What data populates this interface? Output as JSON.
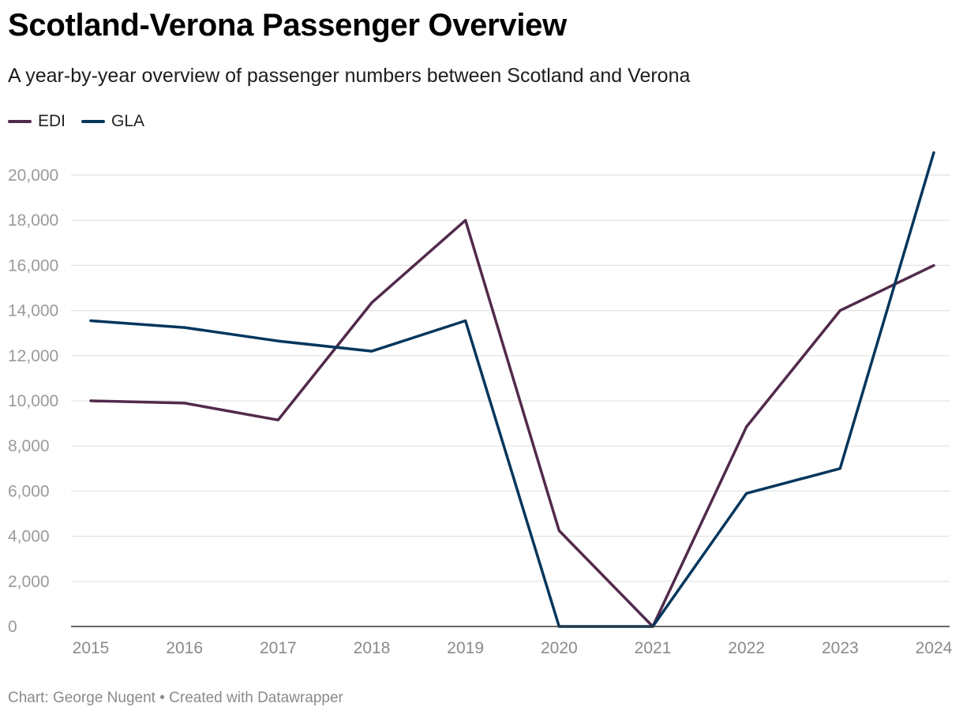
{
  "chart_data": {
    "type": "line",
    "title": "Scotland-Verona Passenger Overview",
    "subtitle": "A year-by-year overview of passenger numbers between Scotland and Verona",
    "x": [
      "2015",
      "2016",
      "2017",
      "2018",
      "2019",
      "2020",
      "2021",
      "2022",
      "2023",
      "2024"
    ],
    "series": [
      {
        "name": "EDI",
        "color": "#522a4b",
        "values": [
          10000,
          9900,
          9150,
          14350,
          18000,
          4250,
          0,
          8850,
          14000,
          16000
        ]
      },
      {
        "name": "GLA",
        "color": "#05365c",
        "values": [
          13550,
          13250,
          12650,
          12200,
          13550,
          0,
          0,
          5900,
          7000,
          21000
        ]
      }
    ],
    "ylim": [
      0,
      21000
    ],
    "yticks": [
      0,
      2000,
      4000,
      6000,
      8000,
      10000,
      12000,
      14000,
      16000,
      18000,
      20000
    ],
    "ytick_labels": [
      "0",
      "2,000",
      "4,000",
      "6,000",
      "8,000",
      "10,000",
      "12,000",
      "14,000",
      "16,000",
      "18,000",
      "20,000"
    ],
    "xlabel": "",
    "ylabel": "",
    "grid": true,
    "legend": "top-left"
  },
  "footer": {
    "credit": "Chart: George Nugent • Created with Datawrapper"
  }
}
